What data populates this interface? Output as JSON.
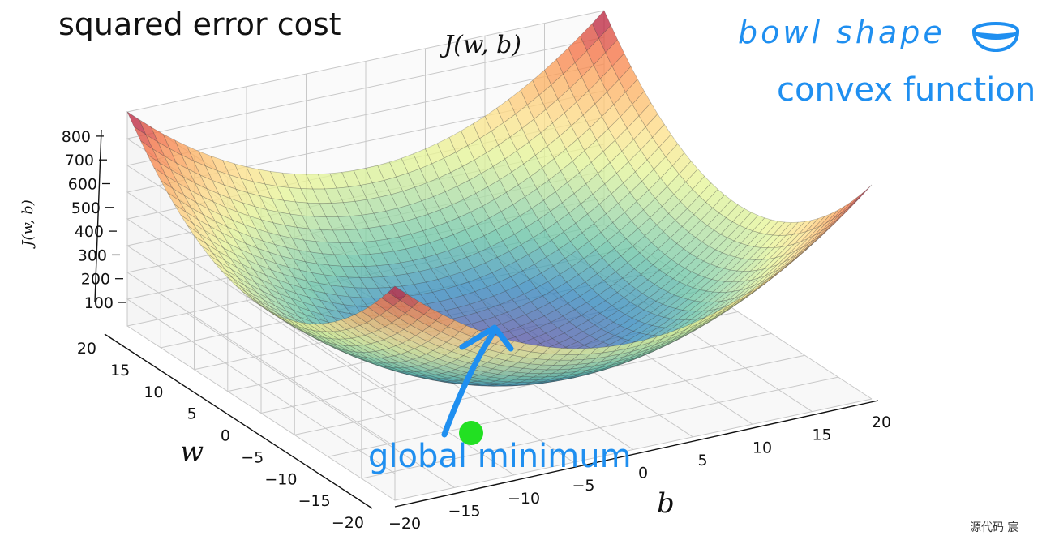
{
  "slide": {
    "title": "squared error cost",
    "annotation_bowl": "bowl shape",
    "annotation_convex": "convex function",
    "annotation_minimum": "global minimum",
    "watermark": "源代码 宸",
    "colors": {
      "annotation": "#1f8ff0",
      "minimum_marker": "#22e022",
      "arrow": "#1f8ff0"
    },
    "icons": [
      "bowl-icon",
      "arrow-icon"
    ]
  },
  "chart_data": {
    "type": "surface",
    "title": "J(w, b)",
    "zlabel": "J(w, b)",
    "xlabel": "b",
    "ylabel": "w",
    "colormap": "Spectral_r",
    "b_range": [
      -20,
      20
    ],
    "w_range": [
      -20,
      20
    ],
    "zlim": [
      0,
      800
    ],
    "b_ticks": [
      "−20",
      "−15",
      "−10",
      "−5",
      "0",
      "5",
      "10",
      "15",
      "20"
    ],
    "w_ticks": [
      "−20",
      "−15",
      "−10",
      "−5",
      "0",
      "5",
      "10",
      "15",
      "20"
    ],
    "z_ticks": [
      "100",
      "200",
      "300",
      "400",
      "500",
      "600",
      "700",
      "800"
    ],
    "surface": {
      "formula": "J = w^2 + b^2",
      "grid": 41,
      "min_value": 0,
      "corner_max_value": 800
    },
    "global_minimum": {
      "b": 0,
      "w": 0,
      "J": 0
    },
    "grid": true
  }
}
